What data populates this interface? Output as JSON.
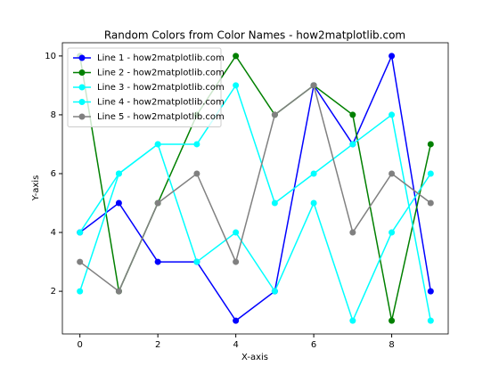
{
  "chart_data": {
    "type": "line",
    "title": "Random Colors from Color Names - how2matplotlib.com",
    "x_label": "X-axis",
    "y_label": "Y-axis",
    "x": [
      0,
      1,
      2,
      3,
      4,
      5,
      6,
      7,
      8,
      9
    ],
    "series": [
      {
        "name": "Line 1 - how2matplotlib.com",
        "color": "#0000ff",
        "values": [
          4,
          5,
          3,
          3,
          1,
          2,
          9,
          7,
          10,
          2
        ]
      },
      {
        "name": "Line 2 - how2matplotlib.com",
        "color": "#008000",
        "values": [
          10,
          2,
          5,
          8,
          10,
          8,
          9,
          8,
          1,
          7
        ]
      },
      {
        "name": "Line 3 - how2matplotlib.com",
        "color": "#00ffff",
        "values": [
          2,
          6,
          7,
          3,
          4,
          2,
          5,
          1,
          4,
          6
        ]
      },
      {
        "name": "Line 4 - how2matplotlib.com",
        "color": "#00ffff",
        "values": [
          4,
          6,
          7,
          7,
          9,
          5,
          6,
          7,
          8,
          1
        ]
      },
      {
        "name": "Line 5 - how2matplotlib.com",
        "color": "#808080",
        "values": [
          3,
          2,
          5,
          6,
          3,
          8,
          9,
          4,
          6,
          5
        ]
      }
    ],
    "xlim": [
      -0.45,
      9.45
    ],
    "xticks": [
      0,
      2,
      4,
      6,
      8
    ],
    "ylim": [
      0.55,
      10.45
    ],
    "yticks": [
      2,
      4,
      6,
      8,
      10
    ],
    "legend": "upper left"
  }
}
